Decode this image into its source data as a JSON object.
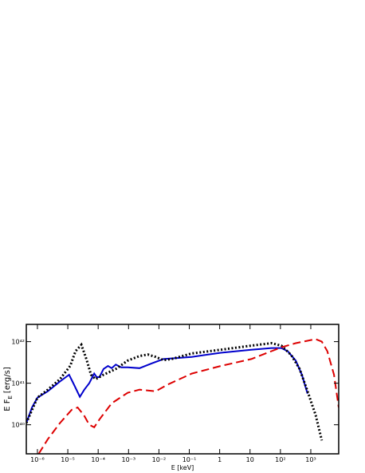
{
  "chart_data": {
    "type": "line",
    "x_label": "E [keV]",
    "y_label": {
      "text": "E F",
      "sub": "E",
      "unit": "[erg/s]"
    },
    "xscale": "log",
    "yscale": "log",
    "xlim": [
      4.3e-07,
      8300
    ],
    "ylim": [
      2e+39,
      2.6e+42
    ],
    "xticks": [
      {
        "value": 1e-06,
        "label": "10⁻⁶"
      },
      {
        "value": 1e-05,
        "label": "10⁻⁵"
      },
      {
        "value": 0.0001,
        "label": "10⁻⁴"
      },
      {
        "value": 0.001,
        "label": "10⁻³"
      },
      {
        "value": 0.01,
        "label": "10⁻²"
      },
      {
        "value": 0.1,
        "label": "10⁻¹"
      },
      1,
      10,
      {
        "value": 100,
        "label": "10²"
      },
      {
        "value": 1000,
        "label": "10³"
      }
    ],
    "yticks": [
      {
        "value": 1e+40,
        "label": "10⁴⁰"
      },
      {
        "value": 1e+41,
        "label": "10⁴¹"
      },
      {
        "value": 1e+42,
        "label": "10⁴²"
      }
    ],
    "series": [
      {
        "color": "#0000cc",
        "linestyle": "solid",
        "x": [
          4.3e-07,
          6.6e-07,
          1e-06,
          2.2e-06,
          5.5e-06,
          1.1e-05,
          1.6e-05,
          2.5e-05,
          3.5e-05,
          5.1e-05,
          7.4e-05,
          8.9e-05,
          0.00011,
          0.00015,
          0.00021,
          0.00028,
          0.00038,
          0.00057,
          0.00094,
          0.0023,
          0.0058,
          0.014,
          0.12,
          1.1,
          11,
          51,
          107,
          174,
          320,
          510,
          780
        ],
        "values": [
          1.1e+40,
          2.6e+40,
          4.5e+40,
          6.4e+40,
          1.1e+41,
          1.6e+41,
          9.2e+40,
          4.7e+40,
          7e+40,
          1e+41,
          1.7e+41,
          1.4e+41,
          1.4e+41,
          2.2e+41,
          2.6e+41,
          2.3e+41,
          2.8e+41,
          2.4e+41,
          2.4e+41,
          2.3e+41,
          3e+41,
          3.8e+41,
          4.3e+41,
          5.4e+41,
          6.4e+41,
          7e+41,
          7e+41,
          5.9e+41,
          3.5e+41,
          1.6e+41,
          5.6e+40
        ]
      },
      {
        "color": "#000000",
        "linestyle": "dotted",
        "x": [
          4.3e-07,
          1e-06,
          2.2e-06,
          5.5e-06,
          1.2e-05,
          1.8e-05,
          2.8e-05,
          4.1e-05,
          5.8e-05,
          8.3e-05,
          0.00015,
          0.00038,
          0.00094,
          0.0023,
          0.0043,
          0.0078,
          0.014,
          0.026,
          0.12,
          1.1,
          11,
          51,
          107,
          230,
          430,
          780,
          1450,
          2300
        ],
        "values": [
          1.1e+40,
          4.5e+40,
          7e+40,
          1.25e+41,
          2.6e+41,
          5.9e+41,
          8.4e+41,
          3.8e+41,
          1.6e+41,
          1.25e+41,
          1.6e+41,
          2.2e+41,
          3.5e+41,
          4.5e+41,
          4.9e+41,
          4.3e+41,
          3.6e+41,
          3.8e+41,
          5.2e+41,
          6.4e+41,
          8e+41,
          9.2e+41,
          8e+41,
          4.7e+41,
          2.2e+41,
          6.4e+40,
          1.7e+40,
          4.2e+39
        ]
      },
      {
        "color": "#dd0000",
        "linestyle": "dashed",
        "x": [
          1.1e-06,
          2.2e-06,
          5.5e-06,
          1.35e-05,
          2.1e-05,
          3.4e-05,
          5.1e-05,
          7.4e-05,
          0.00011,
          0.00028,
          0.00094,
          0.0023,
          0.0078,
          0.019,
          0.12,
          1.1,
          11,
          51,
          107,
          320,
          780,
          1450,
          2300,
          3500,
          5800,
          8300
        ],
        "values": [
          2e+39,
          4.5e+39,
          1.1e+40,
          2.3e+40,
          2.6e+40,
          1.7e+40,
          1e+40,
          8.7e+39,
          1.35e+40,
          3.3e+40,
          5.9e+40,
          7e+40,
          6.4e+40,
          9.2e+40,
          1.7e+41,
          2.6e+41,
          3.8e+41,
          5.9e+41,
          7.3e+41,
          9.2e+41,
          1.05e+42,
          1.15e+42,
          1e+42,
          5.9e+41,
          1.6e+41,
          2.6e+40
        ]
      }
    ]
  }
}
